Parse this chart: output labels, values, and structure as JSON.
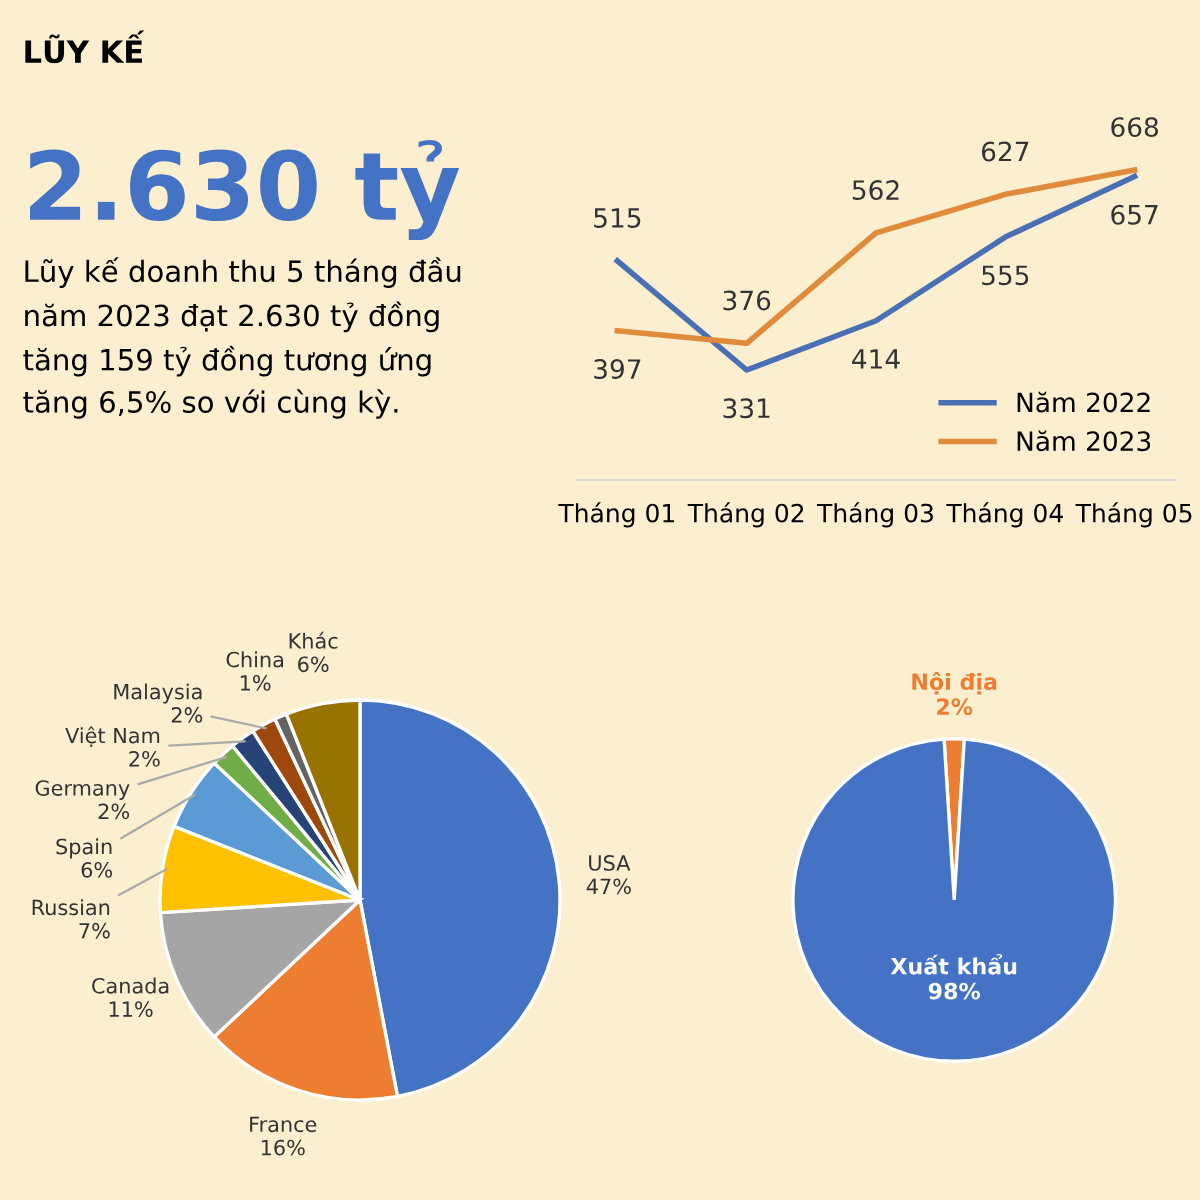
{
  "chart_data": [
    {
      "type": "other",
      "title": "LŨY KẾ",
      "subtitle": "2.630 tỷ",
      "annotations": [
        "Lũy kế doanh thu 5 tháng đầu\nnăm 2023 đạt 2.630 tỷ đồng\ntăng 159 tỷ đồng tương ứng\ntăng 6,5% so với cùng kỳ."
      ]
    },
    {
      "type": "line",
      "categories": [
        "Tháng 01",
        "Tháng 02",
        "Tháng 03",
        "Tháng 04",
        "Tháng 05"
      ],
      "series": [
        {
          "name": "Năm 2022",
          "color": "#4a6fb5",
          "values": [
            515,
            331,
            414,
            555,
            657
          ]
        },
        {
          "name": "Năm 2023",
          "color": "#e08a3c",
          "values": [
            397,
            376,
            562,
            627,
            668
          ]
        }
      ],
      "data_labels": true,
      "legend": "bottom right",
      "tick_labels": "x",
      "marker": "none",
      "line_style": "solid"
    },
    {
      "type": "pie",
      "categories": [
        "USA",
        "France",
        "Canada",
        "Russian",
        "Spain",
        "Germany",
        "Việt Nam",
        "Malaysia",
        "China",
        "Khác"
      ],
      "values": [
        47,
        16,
        11,
        7,
        6,
        2,
        2,
        2,
        1,
        6
      ],
      "value_labels": [
        "47%",
        "16%",
        "11%",
        "7%",
        "6%",
        "2%",
        "2%",
        "2%",
        "1%",
        "6%"
      ],
      "colors": [
        "#4472c4",
        "#ed7d31",
        "#a5a5a5",
        "#ffc000",
        "#5b9bd5",
        "#70ad47",
        "#264478",
        "#9e480e",
        "#636363",
        "#997300"
      ]
    },
    {
      "type": "pie",
      "categories": [
        "Nội địa",
        "Xuất khẩu"
      ],
      "values": [
        2,
        98
      ],
      "value_labels": [
        "2%",
        "98%"
      ],
      "colors": [
        "#ed7d31",
        "#4472c4"
      ]
    }
  ]
}
